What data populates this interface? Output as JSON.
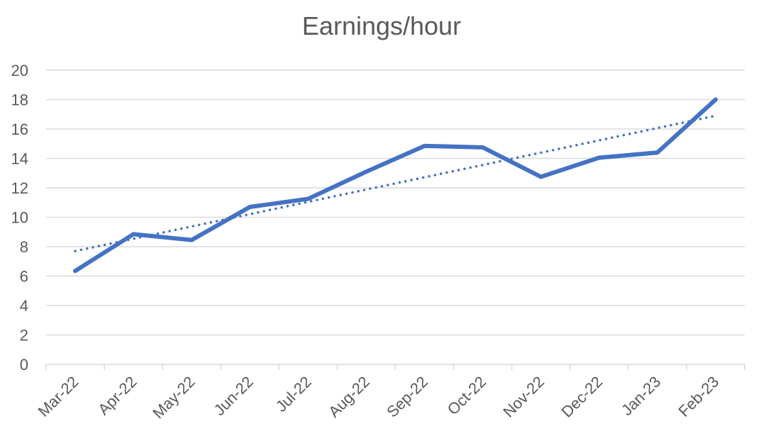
{
  "chart_data": {
    "type": "line",
    "title": "Earnings/hour",
    "xlabel": "",
    "ylabel": "",
    "categories": [
      "Mar-22",
      "Apr-22",
      "May-22",
      "Jun-22",
      "Jul-22",
      "Aug-22",
      "Sep-22",
      "Oct-22",
      "Nov-22",
      "Dec-22",
      "Jan-23",
      "Feb-23"
    ],
    "series": [
      {
        "values": [
          6.35,
          8.85,
          8.45,
          10.7,
          11.25,
          13.1,
          14.85,
          14.75,
          12.75,
          14.05,
          14.4,
          18.0
        ],
        "color": "#4472c4",
        "style": "solid"
      }
    ],
    "trendline": {
      "type": "linear",
      "color": "#4472c4",
      "style": "dotted",
      "start": 7.7,
      "end": 16.9
    },
    "ylim": [
      0,
      20
    ],
    "yticks": [
      0,
      2,
      4,
      6,
      8,
      10,
      12,
      14,
      16,
      18,
      20
    ],
    "grid": true,
    "legend": "none"
  }
}
